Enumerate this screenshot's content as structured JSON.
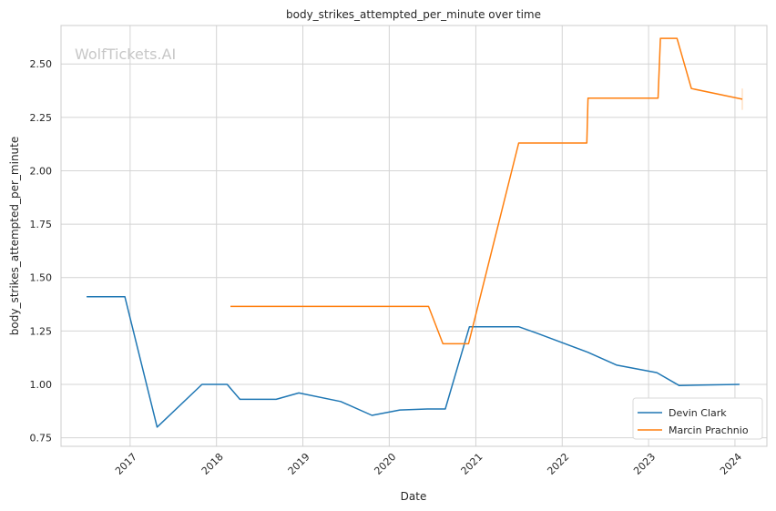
{
  "watermark": "WolfTickets.AI",
  "chart_data": {
    "type": "line",
    "title": "body_strikes_attempted_per_minute over time",
    "xlabel": "Date",
    "ylabel": "body_strikes_attempted_per_minute",
    "x_ticks": [
      "2017",
      "2018",
      "2019",
      "2020",
      "2021",
      "2022",
      "2023",
      "2024"
    ],
    "y_ticks": [
      "0.75",
      "1.00",
      "1.25",
      "1.50",
      "1.75",
      "2.00",
      "2.25",
      "2.50"
    ],
    "ylim": [
      0.71,
      2.68
    ],
    "xlim": [
      "2016-03-15",
      "2024-05-15"
    ],
    "grid": true,
    "legend_position": "lower-right",
    "series": [
      {
        "name": "Devin Clark",
        "color": "#1f77b4",
        "points": [
          [
            "2016-07-01",
            1.41
          ],
          [
            "2016-12-10",
            1.41
          ],
          [
            "2017-04-25",
            0.8
          ],
          [
            "2017-11-01",
            1.0
          ],
          [
            "2018-02-15",
            1.0
          ],
          [
            "2018-04-10",
            0.93
          ],
          [
            "2018-09-10",
            0.93
          ],
          [
            "2018-12-15",
            0.96
          ],
          [
            "2019-06-10",
            0.92
          ],
          [
            "2019-10-20",
            0.855
          ],
          [
            "2020-02-15",
            0.88
          ],
          [
            "2020-06-10",
            0.885
          ],
          [
            "2020-08-25",
            0.885
          ],
          [
            "2020-12-05",
            1.27
          ],
          [
            "2021-07-01",
            1.27
          ],
          [
            "2021-09-15",
            1.24
          ],
          [
            "2022-04-20",
            1.15
          ],
          [
            "2022-08-20",
            1.09
          ],
          [
            "2023-02-05",
            1.055
          ],
          [
            "2023-05-10",
            0.995
          ],
          [
            "2024-01-20",
            1.0
          ]
        ]
      },
      {
        "name": "Marcin Prachnio",
        "color": "#ff7f0e",
        "points": [
          [
            "2018-03-01",
            1.365
          ],
          [
            "2020-06-15",
            1.365
          ],
          [
            "2020-08-15",
            1.19
          ],
          [
            "2020-12-01",
            1.19
          ],
          [
            "2021-07-01",
            2.13
          ],
          [
            "2022-04-15",
            2.13
          ],
          [
            "2022-04-20",
            2.34
          ],
          [
            "2023-02-10",
            2.34
          ],
          [
            "2023-02-20",
            2.62
          ],
          [
            "2023-05-01",
            2.62
          ],
          [
            "2023-07-01",
            2.385
          ],
          [
            "2024-02-01",
            2.335
          ]
        ]
      }
    ]
  }
}
